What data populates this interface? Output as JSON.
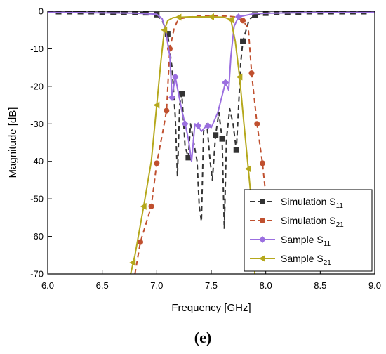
{
  "panel_label": "(e)",
  "chart_data": {
    "type": "line",
    "xlabel": "Frequency [GHz]",
    "ylabel": "Magnitude [dB]",
    "xlim": [
      6.0,
      9.0
    ],
    "ylim": [
      -70,
      0
    ],
    "xticks": [
      "6.0",
      "6.5",
      "7.0",
      "7.5",
      "8.0",
      "8.5",
      "9.0"
    ],
    "yticks": [
      "0",
      "-10",
      "-20",
      "-30",
      "-40",
      "-50",
      "-60",
      "-70"
    ],
    "grid": false,
    "legend_position": "bottom-right",
    "series": [
      {
        "name": "Simulation S11",
        "legend_main": "Simulation S",
        "legend_sub": "11",
        "color": "#333333",
        "line": "dashed",
        "marker": "square",
        "points": [
          [
            6.0,
            -0.1
          ],
          [
            6.3,
            -0.1
          ],
          [
            6.6,
            -0.2
          ],
          [
            6.9,
            -0.4
          ],
          [
            7.0,
            -0.9
          ],
          [
            7.05,
            -2.5
          ],
          [
            7.1,
            -6.0
          ],
          [
            7.14,
            -15.0
          ],
          [
            7.17,
            -28.0
          ],
          [
            7.19,
            -44.0
          ],
          [
            7.21,
            -25.0
          ],
          [
            7.23,
            -22.0
          ],
          [
            7.26,
            -36.0
          ],
          [
            7.29,
            -39.0
          ],
          [
            7.31,
            -30.0
          ],
          [
            7.34,
            -35.0
          ],
          [
            7.37,
            -40.0
          ],
          [
            7.39,
            -52.0
          ],
          [
            7.41,
            -56.0
          ],
          [
            7.43,
            -32.0
          ],
          [
            7.46,
            -30.0
          ],
          [
            7.49,
            -40.0
          ],
          [
            7.51,
            -45.0
          ],
          [
            7.54,
            -33.0
          ],
          [
            7.57,
            -27.0
          ],
          [
            7.6,
            -34.0
          ],
          [
            7.62,
            -58.0
          ],
          [
            7.64,
            -34.0
          ],
          [
            7.67,
            -26.0
          ],
          [
            7.7,
            -30.0
          ],
          [
            7.73,
            -37.0
          ],
          [
            7.75,
            -26.0
          ],
          [
            7.77,
            -14.0
          ],
          [
            7.79,
            -8.0
          ],
          [
            7.85,
            -2.0
          ],
          [
            7.95,
            -0.6
          ],
          [
            8.2,
            -0.2
          ],
          [
            8.6,
            -0.1
          ],
          [
            9.0,
            -0.1
          ]
        ],
        "marker_points": [
          [
            6.1,
            -0.1
          ],
          [
            6.2,
            -0.1
          ],
          [
            6.3,
            -0.1
          ],
          [
            6.4,
            -0.1
          ],
          [
            6.5,
            -0.2
          ],
          [
            6.6,
            -0.2
          ],
          [
            6.7,
            -0.2
          ],
          [
            6.8,
            -0.3
          ],
          [
            6.9,
            -0.4
          ],
          [
            7.0,
            -0.9
          ],
          [
            7.1,
            -6.0
          ],
          [
            7.23,
            -22.0
          ],
          [
            7.29,
            -39.0
          ],
          [
            7.54,
            -33.0
          ],
          [
            7.6,
            -34.0
          ],
          [
            7.73,
            -37.0
          ],
          [
            7.79,
            -8.0
          ],
          [
            7.9,
            -1.0
          ],
          [
            8.0,
            -0.5
          ],
          [
            8.1,
            -0.3
          ],
          [
            8.2,
            -0.2
          ],
          [
            8.3,
            -0.2
          ],
          [
            8.4,
            -0.1
          ],
          [
            8.5,
            -0.1
          ],
          [
            8.6,
            -0.1
          ],
          [
            8.7,
            -0.1
          ],
          [
            8.8,
            -0.1
          ],
          [
            8.9,
            -0.1
          ]
        ]
      },
      {
        "name": "Simulation S21",
        "legend_main": "Simulation S",
        "legend_sub": "21",
        "color": "#c0502f",
        "line": "dashed",
        "marker": "circle",
        "points": [
          [
            6.8,
            -70.0
          ],
          [
            6.85,
            -61.5
          ],
          [
            6.95,
            -52.0
          ],
          [
            7.0,
            -40.5
          ],
          [
            7.05,
            -33.0
          ],
          [
            7.09,
            -26.5
          ],
          [
            7.12,
            -10.0
          ],
          [
            7.16,
            -4.5
          ],
          [
            7.2,
            -2.0
          ],
          [
            7.4,
            -1.2
          ],
          [
            7.6,
            -1.2
          ],
          [
            7.72,
            -1.5
          ],
          [
            7.79,
            -2.5
          ],
          [
            7.84,
            -4.5
          ],
          [
            7.87,
            -16.5
          ],
          [
            7.92,
            -30.0
          ],
          [
            7.97,
            -40.5
          ],
          [
            8.0,
            -49.0
          ],
          [
            8.02,
            -70.0
          ]
        ],
        "marker_points": [
          [
            6.85,
            -61.5
          ],
          [
            6.95,
            -52.0
          ],
          [
            7.0,
            -40.5
          ],
          [
            7.09,
            -26.5
          ],
          [
            7.12,
            -10.0
          ],
          [
            7.79,
            -2.5
          ],
          [
            7.87,
            -16.5
          ],
          [
            7.92,
            -30.0
          ],
          [
            7.97,
            -40.5
          ]
        ]
      },
      {
        "name": "Sample S11",
        "legend_main": "Sample S",
        "legend_sub": "11",
        "color": "#9b6fe0",
        "line": "solid",
        "marker": "diamond",
        "points": [
          [
            6.0,
            -0.3
          ],
          [
            6.4,
            -0.4
          ],
          [
            6.8,
            -0.5
          ],
          [
            7.0,
            -0.8
          ],
          [
            7.05,
            -2.0
          ],
          [
            7.08,
            -5.0
          ],
          [
            7.12,
            -12.0
          ],
          [
            7.14,
            -23.0
          ],
          [
            7.17,
            -17.5
          ],
          [
            7.2,
            -22.0
          ],
          [
            7.23,
            -26.5
          ],
          [
            7.26,
            -30.0
          ],
          [
            7.29,
            -34.0
          ],
          [
            7.32,
            -40.0
          ],
          [
            7.35,
            -30.0
          ],
          [
            7.38,
            -30.5
          ],
          [
            7.41,
            -32.0
          ],
          [
            7.44,
            -31.0
          ],
          [
            7.47,
            -30.5
          ],
          [
            7.5,
            -31.0
          ],
          [
            7.53,
            -29.0
          ],
          [
            7.56,
            -27.0
          ],
          [
            7.6,
            -22.5
          ],
          [
            7.63,
            -19.0
          ],
          [
            7.66,
            -21.0
          ],
          [
            7.68,
            -12.0
          ],
          [
            7.71,
            -4.0
          ],
          [
            7.75,
            -1.5
          ],
          [
            7.9,
            -0.6
          ],
          [
            8.3,
            -0.4
          ],
          [
            9.0,
            -0.3
          ]
        ],
        "marker_points": [
          [
            7.14,
            -23.0
          ],
          [
            7.17,
            -17.5
          ],
          [
            7.26,
            -30.0
          ],
          [
            7.38,
            -30.5
          ],
          [
            7.47,
            -30.5
          ],
          [
            7.63,
            -19.0
          ],
          [
            7.75,
            -1.5
          ]
        ]
      },
      {
        "name": "Sample S21",
        "legend_main": "Sample S",
        "legend_sub": "21",
        "color": "#b5a81c",
        "line": "solid",
        "marker": "triangle-left",
        "points": [
          [
            6.76,
            -70.0
          ],
          [
            6.8,
            -65.0
          ],
          [
            6.88,
            -52.0
          ],
          [
            6.95,
            -40.0
          ],
          [
            7.0,
            -25.0
          ],
          [
            7.04,
            -13.0
          ],
          [
            7.07,
            -5.0
          ],
          [
            7.1,
            -2.5
          ],
          [
            7.15,
            -1.7
          ],
          [
            7.3,
            -1.5
          ],
          [
            7.5,
            -1.5
          ],
          [
            7.62,
            -1.6
          ],
          [
            7.68,
            -2.3
          ],
          [
            7.72,
            -8.0
          ],
          [
            7.76,
            -17.5
          ],
          [
            7.8,
            -30.0
          ],
          [
            7.84,
            -42.0
          ],
          [
            7.88,
            -54.0
          ],
          [
            7.9,
            -70.0
          ]
        ],
        "marker_points": [
          [
            6.78,
            -67.0
          ],
          [
            6.88,
            -52.0
          ],
          [
            7.0,
            -25.0
          ],
          [
            7.07,
            -5.0
          ],
          [
            7.2,
            -1.6
          ],
          [
            7.5,
            -1.5
          ],
          [
            7.68,
            -2.3
          ],
          [
            7.76,
            -17.5
          ],
          [
            7.84,
            -42.0
          ]
        ]
      }
    ]
  }
}
